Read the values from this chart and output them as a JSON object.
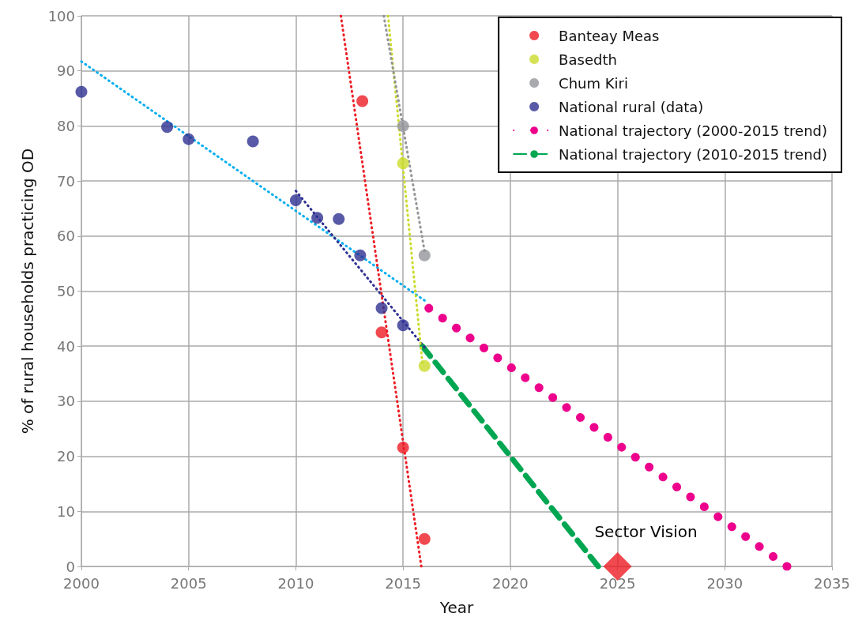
{
  "chart_data": {
    "type": "scatter",
    "xlabel": "Year",
    "ylabel": "% of rural households practicing OD",
    "xlim": [
      2000,
      2035
    ],
    "xticks": [
      2000,
      2005,
      2010,
      2015,
      2020,
      2025,
      2030,
      2035
    ],
    "ylim": [
      0,
      100
    ],
    "yticks": [
      0,
      10,
      20,
      30,
      40,
      50,
      60,
      70,
      80,
      90,
      100
    ],
    "grid": true,
    "legend": "top right",
    "annotations": [
      {
        "text": "Sector Vision",
        "x": 2025,
        "y": 0
      }
    ],
    "series": [
      {
        "type": "line",
        "line_style": "dotted",
        "marker": "none",
        "color": "#00aeef",
        "x": [
          2000,
          2016
        ],
        "values": [
          91.7,
          48.3
        ]
      },
      {
        "type": "line",
        "line_style": "dotted",
        "marker": "none",
        "color": "#2e3192",
        "x": [
          2010,
          2016
        ],
        "values": [
          68.2,
          39.8
        ]
      },
      {
        "type": "line",
        "line_style": "dotted",
        "marker": "none",
        "color": "#ed1c24",
        "x": [
          2012.1,
          2015.85
        ],
        "values": [
          100,
          0
        ]
      },
      {
        "type": "line",
        "line_style": "dotted",
        "marker": "none",
        "color": "#cbdb2a",
        "x": [
          2014.3,
          2015.9
        ],
        "values": [
          100,
          37
        ]
      },
      {
        "type": "line",
        "line_style": "dotted",
        "marker": "none",
        "color": "#939598",
        "x": [
          2014.1,
          2016
        ],
        "values": [
          100,
          57.3
        ]
      },
      {
        "name": "Banteay Meas",
        "marker": "circle",
        "color": "#ed1c24",
        "x": [
          2013.1,
          2014,
          2015,
          2016
        ],
        "values": [
          84.5,
          42.5,
          21.6,
          5
        ]
      },
      {
        "name": "Basedth",
        "marker": "circle",
        "color": "#cbdb2a",
        "x": [
          2015,
          2016
        ],
        "values": [
          73.2,
          36.4
        ]
      },
      {
        "name": "Chum Kiri",
        "marker": "circle",
        "color": "#939598",
        "x": [
          2015,
          2016
        ],
        "values": [
          80,
          56.5
        ]
      },
      {
        "name": "National rural (data)",
        "marker": "circle",
        "color": "#2e3192",
        "x": [
          2000,
          2004,
          2005,
          2008,
          2010,
          2011,
          2012,
          2013,
          2014,
          2015
        ],
        "values": [
          86.2,
          79.8,
          77.6,
          77.2,
          66.5,
          63.3,
          63.1,
          56.5,
          46.9,
          43.8
        ]
      },
      {
        "name": "National trajectory (2000-2015 trend)",
        "type": "line",
        "line_style": "dotted",
        "marker": "none",
        "color": "#ec008c",
        "x": [
          2016.2,
          2032.9
        ],
        "values": [
          46.9,
          0
        ]
      },
      {
        "name": "National trajectory (2010-2015 trend)",
        "type": "line",
        "line_style": "dashed",
        "marker": "none",
        "color": "#00a651",
        "x": [
          2015.9,
          2024.1
        ],
        "values": [
          40,
          0
        ]
      },
      {
        "marker": "diamond",
        "color": "#ed1c24",
        "x": [
          2025
        ],
        "values": [
          0
        ]
      }
    ]
  }
}
